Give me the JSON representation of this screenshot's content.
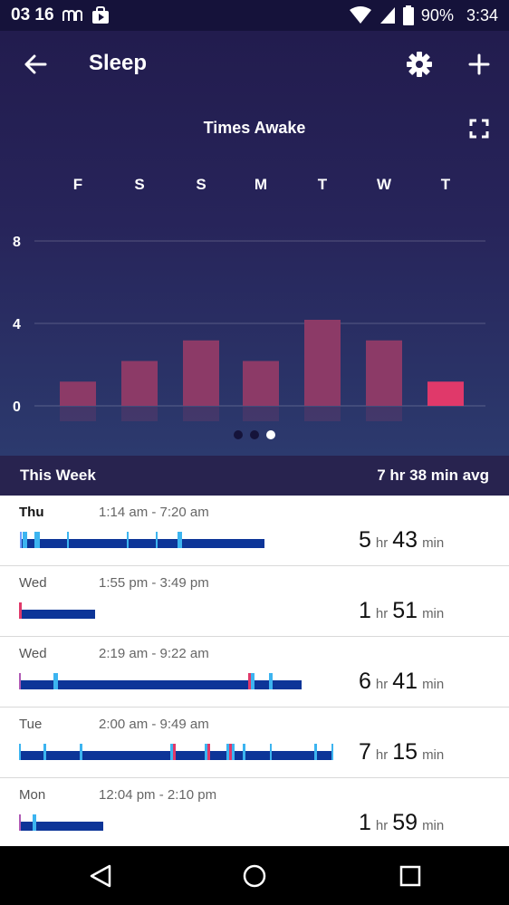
{
  "status_bar": {
    "date": "03 16",
    "battery": "90%",
    "time": "3:34"
  },
  "header": {
    "title": "Sleep"
  },
  "chart": {
    "title": "Times Awake",
    "day_labels": [
      "F",
      "S",
      "S",
      "M",
      "T",
      "W",
      "T"
    ],
    "y_ticks": [
      "8",
      "4",
      "0"
    ]
  },
  "chart_data": {
    "type": "bar",
    "title": "Times Awake",
    "categories": [
      "F",
      "S",
      "S",
      "M",
      "T",
      "W",
      "T"
    ],
    "values": [
      1,
      2,
      3,
      2,
      4,
      3,
      1
    ],
    "ylim": [
      0,
      8
    ],
    "yticks": [
      0,
      4,
      8
    ],
    "grid": true,
    "colors": {
      "bar": "#8c3a67",
      "highlight": "#e0396a"
    },
    "highlight_index": 6
  },
  "pager": {
    "pages": 3,
    "active": 2
  },
  "week": {
    "label": "This Week",
    "avg": "7 hr 38 min avg"
  },
  "units": {
    "hr": "hr",
    "min": "min"
  },
  "entries": [
    {
      "day": "Thu",
      "range": "1:14 am - 7:20 am",
      "hours": "5",
      "minutes": "43",
      "bar": 0.78
    },
    {
      "day": "Wed",
      "range": "1:55 pm - 3:49 pm",
      "hours": "1",
      "minutes": "51",
      "bar": 0.24
    },
    {
      "day": "Wed",
      "range": "2:19 am - 9:22 am",
      "hours": "6",
      "minutes": "41",
      "bar": 0.9
    },
    {
      "day": "Tue",
      "range": "2:00 am - 9:49 am",
      "hours": "7",
      "minutes": "15",
      "bar": 1.0
    },
    {
      "day": "Mon",
      "range": "12:04 pm - 2:10 pm",
      "hours": "1",
      "minutes": "59",
      "bar": 0.27
    }
  ]
}
